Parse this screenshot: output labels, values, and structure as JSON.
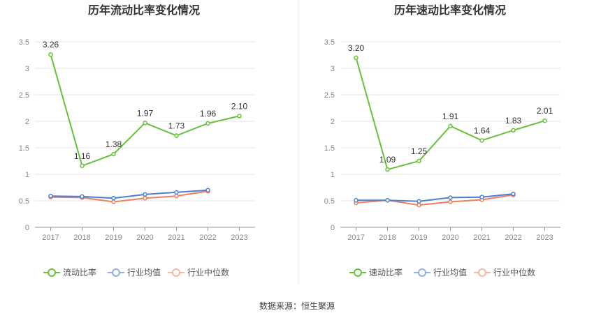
{
  "colors": {
    "main": "#67c23a",
    "avg": "#4d7fd6",
    "median": "#ef7f5d",
    "avg_legend": "#8fb0e8",
    "median_legend": "#f5b7a3",
    "grid": "#e5e5e5",
    "axis": "#999999",
    "divider": "#eeeeee"
  },
  "source": "数据来源：恒生聚源",
  "chart_data": [
    {
      "type": "line",
      "title": "历年流动比率变化情况",
      "categories": [
        "2017",
        "2018",
        "2019",
        "2020",
        "2021",
        "2022",
        "2023"
      ],
      "ylim": [
        0,
        3.5
      ],
      "yticks": [
        "0",
        "0.5",
        "1",
        "1.5",
        "2",
        "2.5",
        "3",
        "3.5"
      ],
      "grid": true,
      "legend_position": "bottom",
      "series": [
        {
          "name": "流动比率",
          "values": [
            3.26,
            1.16,
            1.38,
            1.97,
            1.73,
            1.96,
            2.1
          ],
          "labels": [
            "3.26",
            "1.16",
            "1.38",
            "1.97",
            "1.73",
            "1.96",
            "2.10"
          ]
        },
        {
          "name": "行业均值",
          "values": [
            0.59,
            0.58,
            0.55,
            0.62,
            0.66,
            0.7,
            null
          ]
        },
        {
          "name": "行业中位数",
          "values": [
            0.57,
            0.56,
            0.48,
            0.55,
            0.59,
            0.68,
            null
          ]
        }
      ]
    },
    {
      "type": "line",
      "title": "历年速动比率变化情况",
      "categories": [
        "2017",
        "2018",
        "2019",
        "2020",
        "2021",
        "2022",
        "2023"
      ],
      "ylim": [
        0,
        3.5
      ],
      "yticks": [
        "0",
        "0.5",
        "1",
        "1.5",
        "2",
        "2.5",
        "3",
        "3.5"
      ],
      "grid": true,
      "legend_position": "bottom",
      "series": [
        {
          "name": "速动比率",
          "values": [
            3.2,
            1.09,
            1.25,
            1.91,
            1.64,
            1.83,
            2.01
          ],
          "labels": [
            "3.20",
            "1.09",
            "1.25",
            "1.91",
            "1.64",
            "1.83",
            "2.01"
          ]
        },
        {
          "name": "行业均值",
          "values": [
            0.51,
            0.51,
            0.49,
            0.56,
            0.57,
            0.63,
            null
          ]
        },
        {
          "name": "行业中位数",
          "values": [
            0.46,
            0.51,
            0.42,
            0.48,
            0.52,
            0.61,
            null
          ]
        }
      ]
    }
  ]
}
